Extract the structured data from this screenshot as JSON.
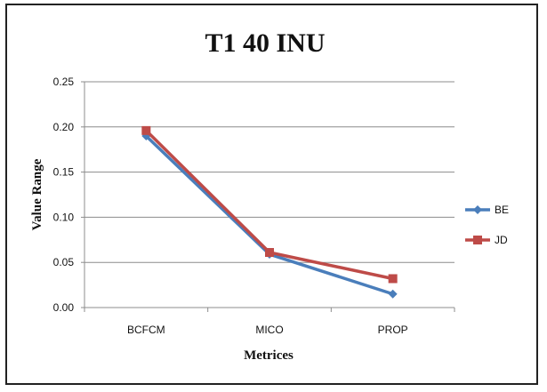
{
  "chart_data": {
    "type": "line",
    "title": "T1 40 INU",
    "xlabel": "Metrices",
    "ylabel": "Value Range",
    "categories": [
      "BCFCM",
      "MICO",
      "PROP"
    ],
    "ylim": [
      0,
      0.25
    ],
    "yticks": [
      "0.00",
      "0.05",
      "0.10",
      "0.15",
      "0.20",
      "0.25"
    ],
    "grid": true,
    "legend_position": "right",
    "series": [
      {
        "name": "BE",
        "values": [
          0.19,
          0.059,
          0.015
        ],
        "color": "#4a7ebb",
        "marker": "diamond"
      },
      {
        "name": "JD",
        "values": [
          0.196,
          0.061,
          0.032
        ],
        "color": "#be4b48",
        "marker": "square"
      }
    ]
  }
}
